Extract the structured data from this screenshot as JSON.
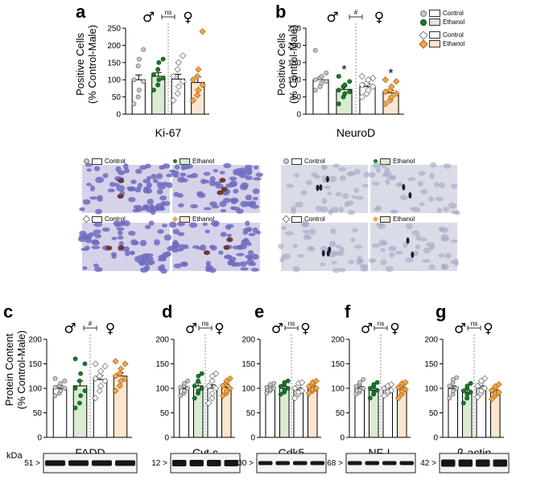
{
  "panels": {
    "a": "a",
    "b": "b",
    "c": "c",
    "d": "d",
    "e": "e",
    "f": "f",
    "g": "g"
  },
  "symbols": {
    "male": "♂",
    "female": "♀",
    "ns": "ns",
    "hash": "#",
    "star": "*"
  },
  "top_axis_title_line1": "Positive Cells",
  "top_axis_title_line2": "(% Control-Male)",
  "bottom_axis_title_line1": "Protein Content",
  "bottom_axis_title_line2": "(% Control-Male)",
  "kda_label": "kDa",
  "legend": {
    "control": "Control",
    "ethanol": "Ethanol"
  },
  "colors": {
    "male_control_fill": "#ffffff",
    "male_ethanol_fill": "#d8ecd2",
    "female_control_fill": "#ffffff",
    "female_ethanol_fill": "#fde6cf",
    "male_control_dot": "#c8c8c8",
    "male_ethanol_dot": "#1b7a2a",
    "female_control_dot": "#ffffff",
    "female_ethanol_dot": "#f3a54a",
    "stain_bg": "#d6d2ea",
    "stain_cell": "#6f6cc0"
  },
  "chart_data": [
    {
      "id": "a",
      "type": "bar",
      "xlabel": "Ki-67",
      "ylim": [
        0,
        250
      ],
      "yticks": [
        0,
        50,
        100,
        150,
        200,
        250
      ],
      "comparison": "ns",
      "series": [
        {
          "name": "Control",
          "sex": "male",
          "mean": 100,
          "sem": 14,
          "points": [
            30,
            50,
            70,
            95,
            100,
            140,
            160,
            188
          ]
        },
        {
          "name": "Ethanol",
          "sex": "male",
          "mean": 110,
          "sem": 11,
          "points": [
            70,
            85,
            100,
            105,
            115,
            130,
            150,
            160
          ]
        },
        {
          "name": "Control",
          "sex": "female",
          "mean": 102,
          "sem": 14,
          "points": [
            40,
            60,
            80,
            95,
            110,
            130,
            150,
            170
          ]
        },
        {
          "name": "Ethanol",
          "sex": "female",
          "mean": 92,
          "sem": 16,
          "points": [
            40,
            55,
            70,
            85,
            100,
            110,
            130,
            240
          ]
        }
      ]
    },
    {
      "id": "b",
      "type": "bar",
      "xlabel": "NeuroD",
      "ylim": [
        0,
        250
      ],
      "yticks": [
        0,
        50,
        100,
        150,
        200,
        250
      ],
      "comparison": "#",
      "stars": [
        1,
        3
      ],
      "series": [
        {
          "name": "Control",
          "sex": "male",
          "mean": 100,
          "sem": 8,
          "points": [
            70,
            80,
            90,
            95,
            100,
            105,
            110,
            120,
            185
          ]
        },
        {
          "name": "Ethanol",
          "sex": "male",
          "mean": 72,
          "sem": 8,
          "points": [
            30,
            50,
            60,
            65,
            70,
            80,
            85,
            95,
            110
          ]
        },
        {
          "name": "Control",
          "sex": "female",
          "mean": 80,
          "sem": 7,
          "points": [
            50,
            60,
            70,
            80,
            85,
            90,
            100,
            105,
            110
          ]
        },
        {
          "name": "Ethanol",
          "sex": "female",
          "mean": 62,
          "sem": 7,
          "points": [
            30,
            40,
            50,
            60,
            65,
            70,
            80,
            95,
            100
          ]
        }
      ]
    },
    {
      "id": "c",
      "type": "bar",
      "xlabel": "FADD",
      "ylim": [
        0,
        200
      ],
      "yticks": [
        0,
        50,
        100,
        150,
        200
      ],
      "comparison": "#",
      "kda": "51 >",
      "series": [
        {
          "name": "Control",
          "sex": "male",
          "mean": 100,
          "sem": 5,
          "points": [
            85,
            90,
            95,
            100,
            102,
            105,
            110,
            115,
            120
          ]
        },
        {
          "name": "Ethanol",
          "sex": "male",
          "mean": 105,
          "sem": 10,
          "points": [
            60,
            70,
            85,
            95,
            100,
            115,
            130,
            150,
            160
          ]
        },
        {
          "name": "Control",
          "sex": "female",
          "mean": 118,
          "sem": 8,
          "points": [
            80,
            95,
            105,
            115,
            120,
            125,
            135,
            145,
            150
          ]
        },
        {
          "name": "Ethanol",
          "sex": "female",
          "mean": 125,
          "sem": 7,
          "points": [
            95,
            105,
            115,
            120,
            125,
            130,
            140,
            150,
            155
          ]
        }
      ]
    },
    {
      "id": "d",
      "type": "bar",
      "xlabel": "Cyt c",
      "ylim": [
        0,
        200
      ],
      "yticks": [
        0,
        50,
        100,
        150,
        200
      ],
      "comparison": "ns",
      "kda": "12 >",
      "series": [
        {
          "name": "Control",
          "sex": "male",
          "mean": 100,
          "sem": 4,
          "points": [
            85,
            90,
            95,
            100,
            102,
            105,
            110,
            115
          ]
        },
        {
          "name": "Ethanol",
          "sex": "male",
          "mean": 105,
          "sem": 6,
          "points": [
            80,
            90,
            95,
            100,
            105,
            115,
            125,
            130
          ]
        },
        {
          "name": "Control",
          "sex": "female",
          "mean": 100,
          "sem": 7,
          "points": [
            70,
            80,
            90,
            100,
            105,
            115,
            125,
            130
          ]
        },
        {
          "name": "Ethanol",
          "sex": "female",
          "mean": 102,
          "sem": 5,
          "points": [
            85,
            90,
            95,
            100,
            105,
            110,
            115,
            120
          ]
        }
      ]
    },
    {
      "id": "e",
      "type": "bar",
      "xlabel": "Cdk5",
      "ylim": [
        0,
        200
      ],
      "yticks": [
        0,
        50,
        100,
        150,
        200
      ],
      "comparison": "ns",
      "kda": "30 >",
      "series": [
        {
          "name": "Control",
          "sex": "male",
          "mean": 100,
          "sem": 3,
          "points": [
            90,
            95,
            98,
            100,
            102,
            105,
            108,
            110
          ]
        },
        {
          "name": "Ethanol",
          "sex": "male",
          "mean": 100,
          "sem": 4,
          "points": [
            88,
            92,
            96,
            100,
            104,
            108,
            112,
            115
          ]
        },
        {
          "name": "Control",
          "sex": "female",
          "mean": 97,
          "sem": 4,
          "points": [
            80,
            88,
            92,
            95,
            100,
            105,
            110,
            112
          ]
        },
        {
          "name": "Ethanol",
          "sex": "female",
          "mean": 102,
          "sem": 3,
          "points": [
            90,
            95,
            98,
            100,
            104,
            108,
            112,
            115
          ]
        }
      ]
    },
    {
      "id": "f",
      "type": "bar",
      "xlabel": "NF-L",
      "ylim": [
        0,
        200
      ],
      "yticks": [
        0,
        50,
        100,
        150,
        200
      ],
      "comparison": "ns",
      "kda": "68 >",
      "series": [
        {
          "name": "Control",
          "sex": "male",
          "mean": 100,
          "sem": 4,
          "points": [
            88,
            92,
            96,
            100,
            104,
            108,
            112,
            118
          ]
        },
        {
          "name": "Ethanol",
          "sex": "male",
          "mean": 96,
          "sem": 4,
          "points": [
            80,
            88,
            92,
            96,
            100,
            104,
            108,
            112
          ]
        },
        {
          "name": "Control",
          "sex": "female",
          "mean": 96,
          "sem": 3,
          "points": [
            85,
            90,
            94,
            96,
            100,
            102,
            105,
            108
          ]
        },
        {
          "name": "Ethanol",
          "sex": "female",
          "mean": 98,
          "sem": 4,
          "points": [
            80,
            88,
            94,
            98,
            102,
            106,
            110,
            112
          ]
        }
      ]
    },
    {
      "id": "g",
      "type": "bar",
      "xlabel": "β-actin",
      "ylim": [
        0,
        200
      ],
      "yticks": [
        0,
        50,
        100,
        150,
        200
      ],
      "comparison": "ns",
      "kda": "42 >",
      "series": [
        {
          "name": "Control",
          "sex": "male",
          "mean": 100,
          "sem": 5,
          "points": [
            80,
            88,
            95,
            100,
            105,
            112,
            118,
            122
          ]
        },
        {
          "name": "Ethanol",
          "sex": "male",
          "mean": 92,
          "sem": 5,
          "points": [
            70,
            80,
            88,
            92,
            95,
            100,
            105,
            110
          ]
        },
        {
          "name": "Control",
          "sex": "female",
          "mean": 100,
          "sem": 5,
          "points": [
            82,
            90,
            95,
            100,
            105,
            110,
            115,
            120
          ]
        },
        {
          "name": "Ethanol",
          "sex": "female",
          "mean": 92,
          "sem": 4,
          "points": [
            78,
            85,
            90,
            92,
            96,
            100,
            104,
            108
          ]
        }
      ]
    }
  ],
  "micrographs": {
    "a_titles": [
      "Control",
      "Ethanol",
      "Control",
      "Ethanol"
    ],
    "b_titles": [
      "Control",
      "Ethanol",
      "Control",
      "Ethanol"
    ]
  }
}
